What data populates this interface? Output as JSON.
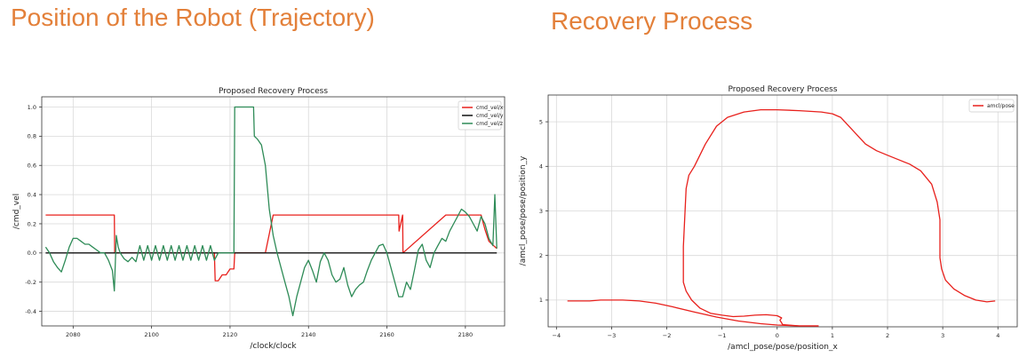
{
  "slide": {
    "left_heading": "Position of the Robot (Trajectory)",
    "right_heading": "Recovery Process",
    "accent": "#e3803a"
  },
  "chart_data": [
    {
      "type": "line",
      "title": "Proposed Recovery Process",
      "xlabel": "/clock/clock",
      "ylabel": "/cmd_vel",
      "xlim": [
        2072,
        2190
      ],
      "ylim": [
        -0.5,
        1.07
      ],
      "xticks": [
        2080,
        2100,
        2120,
        2140,
        2160,
        2180
      ],
      "yticks": [
        -0.4,
        -0.2,
        0.0,
        0.2,
        0.4,
        0.6,
        0.8,
        1.0
      ],
      "grid": true,
      "legend": "top-right",
      "series": [
        {
          "name": "cmd_vel/x",
          "color": "#e8201c",
          "x": [
            2073,
            2080,
            2084,
            2088,
            2090.5,
            2090.6,
            2092,
            2094,
            2096,
            2098,
            2100,
            2110,
            2116,
            2116.2,
            2117,
            2118,
            2119,
            2120,
            2121,
            2121.2,
            2122,
            2124,
            2126,
            2128,
            2129,
            2130,
            2131,
            2140,
            2160,
            2163,
            2163.1,
            2164,
            2164.1,
            2175,
            2180,
            2184,
            2185,
            2186,
            2188
          ],
          "y": [
            0.26,
            0.26,
            0.26,
            0.26,
            0.26,
            0.0,
            0.0,
            0.0,
            0.0,
            0.0,
            0.0,
            0.0,
            0.0,
            -0.19,
            -0.19,
            -0.15,
            -0.15,
            -0.11,
            -0.11,
            0.0,
            0.0,
            0.0,
            0.0,
            0.0,
            0.0,
            0.13,
            0.26,
            0.26,
            0.26,
            0.26,
            0.15,
            0.26,
            0.0,
            0.26,
            0.26,
            0.26,
            0.16,
            0.08,
            0.03
          ]
        },
        {
          "name": "cmd_vel/y",
          "color": "#111111",
          "x": [
            2073,
            2188
          ],
          "y": [
            0.0,
            0.0
          ]
        },
        {
          "name": "cmd_vel/z",
          "color": "#2e8b57",
          "x": [
            2073,
            2074,
            2075,
            2076,
            2077,
            2078,
            2079,
            2080,
            2081,
            2082,
            2083,
            2084,
            2085,
            2086,
            2087,
            2088,
            2089,
            2090,
            2090.5,
            2091,
            2091.5,
            2092,
            2093,
            2094,
            2095,
            2096,
            2097,
            2098,
            2099,
            2100,
            2101,
            2102,
            2103,
            2104,
            2105,
            2106,
            2107,
            2108,
            2109,
            2110,
            2111,
            2112,
            2113,
            2114,
            2115,
            2116,
            2117,
            2118,
            2119,
            2120,
            2121,
            2121.2,
            2122,
            2123,
            2124,
            2125,
            2126,
            2126.2,
            2127,
            2128,
            2129,
            2130,
            2131,
            2132,
            2133,
            2134,
            2135,
            2136,
            2137,
            2138,
            2139,
            2140,
            2141,
            2142,
            2143,
            2144,
            2145,
            2146,
            2147,
            2148,
            2149,
            2150,
            2151,
            2152,
            2153,
            2154,
            2155,
            2156,
            2157,
            2158,
            2159,
            2160,
            2161,
            2162,
            2163,
            2164,
            2165,
            2166,
            2167,
            2168,
            2169,
            2170,
            2171,
            2172,
            2173,
            2174,
            2175,
            2176,
            2177,
            2178,
            2179,
            2180,
            2181,
            2182,
            2183,
            2184,
            2185,
            2186,
            2187,
            2187.5,
            2188
          ],
          "y": [
            0.04,
            0.0,
            -0.06,
            -0.1,
            -0.13,
            -0.05,
            0.04,
            0.1,
            0.1,
            0.08,
            0.06,
            0.06,
            0.04,
            0.02,
            0.0,
            0.0,
            -0.05,
            -0.12,
            -0.26,
            0.12,
            0.04,
            0.0,
            -0.04,
            -0.06,
            -0.03,
            -0.06,
            0.05,
            -0.05,
            0.05,
            -0.05,
            0.05,
            -0.05,
            0.05,
            -0.05,
            0.05,
            -0.05,
            0.05,
            -0.05,
            0.05,
            -0.05,
            0.05,
            -0.05,
            0.05,
            -0.05,
            0.05,
            -0.05,
            0.0,
            0.0,
            0.0,
            0.0,
            0.0,
            1.0,
            1.0,
            1.0,
            1.0,
            1.0,
            1.0,
            0.8,
            0.78,
            0.74,
            0.6,
            0.3,
            0.12,
            0.0,
            -0.1,
            -0.2,
            -0.3,
            -0.43,
            -0.3,
            -0.2,
            -0.1,
            -0.05,
            -0.12,
            -0.2,
            -0.06,
            0.0,
            -0.05,
            -0.15,
            -0.2,
            -0.18,
            -0.1,
            -0.22,
            -0.3,
            -0.25,
            -0.22,
            -0.2,
            -0.12,
            -0.05,
            0.0,
            0.05,
            0.06,
            0.0,
            -0.1,
            -0.2,
            -0.3,
            -0.3,
            -0.2,
            -0.25,
            -0.12,
            0.02,
            0.06,
            -0.05,
            -0.1,
            0.0,
            0.05,
            0.1,
            0.08,
            0.15,
            0.2,
            0.25,
            0.3,
            0.28,
            0.25,
            0.2,
            0.15,
            0.25,
            0.2,
            0.1,
            0.05,
            0.4,
            0.03
          ]
        }
      ]
    },
    {
      "type": "line",
      "title": "Proposed Recovery Process",
      "xlabel": "/amcl_pose/pose/position_x",
      "ylabel": "/amcl_pose/pose/position_y",
      "xlim": [
        -4.15,
        4.35
      ],
      "ylim": [
        0.4,
        5.6
      ],
      "xticks": [
        -4,
        -3,
        -2,
        -1,
        0,
        1,
        2,
        3,
        4
      ],
      "yticks": [
        1,
        2,
        3,
        4,
        5
      ],
      "grid": true,
      "legend": "top-right",
      "series": [
        {
          "name": "amcl/pose",
          "color": "#e8201c",
          "x": [
            0.75,
            0.4,
            0.1,
            0.05,
            0.08,
            0.0,
            -0.2,
            -0.4,
            -0.6,
            -0.8,
            -1.0,
            -1.2,
            -1.4,
            -1.55,
            -1.65,
            -1.7,
            -1.7,
            -1.65,
            -1.6,
            -1.5,
            -1.3,
            -1.1,
            -0.9,
            -0.6,
            -0.3,
            0.0,
            0.4,
            0.8,
            1.0,
            1.15,
            1.3,
            1.45,
            1.6,
            1.8,
            2.0,
            2.2,
            2.4,
            2.6,
            2.8,
            2.9,
            2.95,
            2.95,
            2.95,
            2.98,
            3.05,
            3.2,
            3.4,
            3.6,
            3.8,
            3.95
          ],
          "y": [
            0.42,
            0.42,
            0.45,
            0.55,
            0.6,
            0.65,
            0.67,
            0.66,
            0.64,
            0.63,
            0.66,
            0.7,
            0.82,
            1.0,
            1.2,
            1.4,
            2.2,
            3.5,
            3.8,
            4.0,
            4.5,
            4.9,
            5.1,
            5.22,
            5.27,
            5.27,
            5.25,
            5.22,
            5.18,
            5.1,
            4.9,
            4.7,
            4.5,
            4.35,
            4.25,
            4.15,
            4.05,
            3.9,
            3.6,
            3.2,
            2.8,
            2.4,
            1.95,
            1.7,
            1.45,
            1.25,
            1.1,
            1.0,
            0.96,
            0.98
          ]
        },
        {
          "name": "",
          "color": "#e8201c",
          "x": [
            -3.8,
            -3.4,
            -3.2,
            -2.8,
            -2.5,
            -2.2,
            -1.9,
            -1.5,
            -1.1,
            -0.7,
            -0.3,
            0.0,
            0.4,
            0.75
          ],
          "y": [
            0.98,
            0.98,
            1.0,
            1.0,
            0.98,
            0.93,
            0.85,
            0.73,
            0.62,
            0.53,
            0.47,
            0.44,
            0.42,
            0.42
          ]
        }
      ]
    }
  ]
}
